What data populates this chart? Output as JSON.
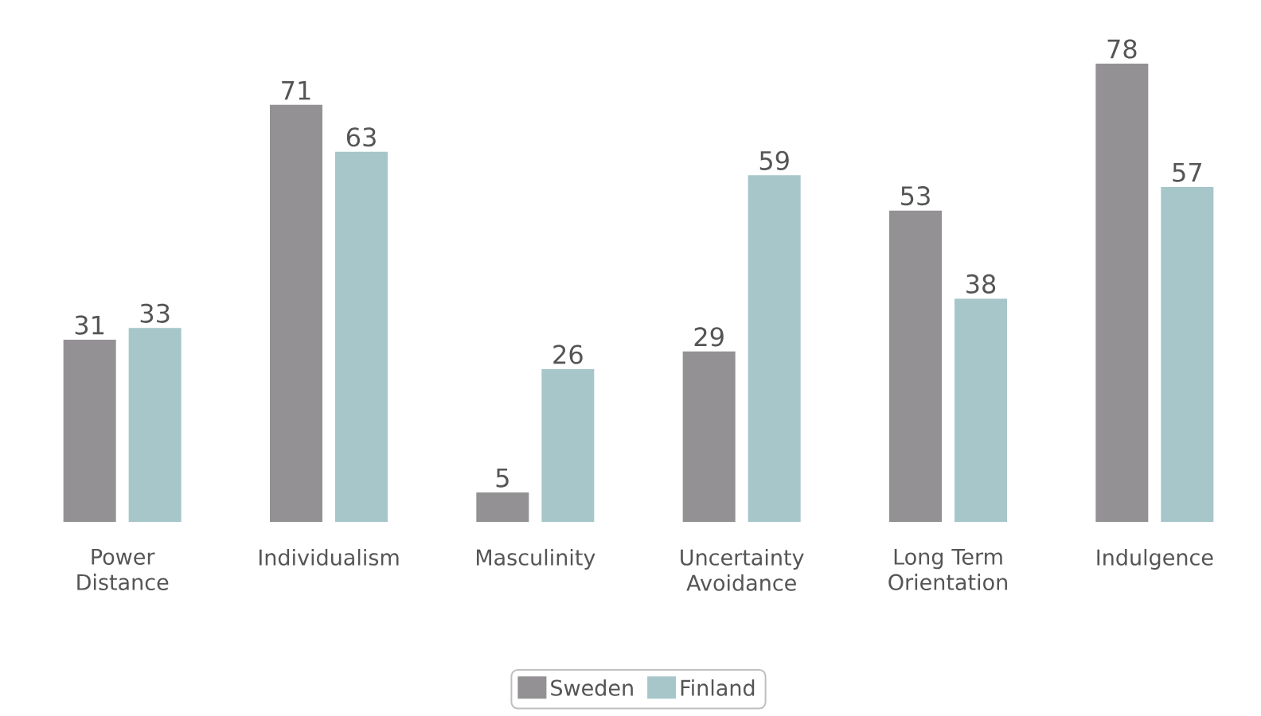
{
  "chart_data": {
    "type": "bar",
    "categories": [
      "Power Distance",
      "Individualism",
      "Masculinity",
      "Uncertainty Avoidance",
      "Long Term Orientation",
      "Indulgence"
    ],
    "series": [
      {
        "name": "Sweden",
        "color": "#939193",
        "values": [
          31,
          71,
          5,
          29,
          53,
          78
        ]
      },
      {
        "name": "Finland",
        "color": "#a6c6ca",
        "values": [
          33,
          63,
          26,
          59,
          38,
          57
        ]
      }
    ],
    "data_labels": true,
    "legend": "bottom"
  }
}
